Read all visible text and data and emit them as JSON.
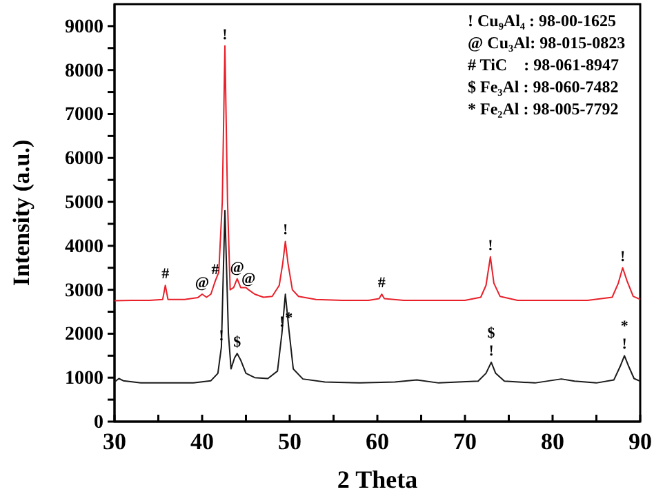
{
  "chart_data": {
    "type": "line",
    "xlabel": "2 Theta",
    "ylabel": "Intensity (a.u.)",
    "xlim": [
      30,
      90
    ],
    "ylim": [
      0,
      9500
    ],
    "xticks": [
      30,
      {
        "value": 35,
        "label": null
      },
      40,
      {
        "value": 45,
        "label": null
      },
      50,
      {
        "value": 55,
        "label": null
      },
      60,
      {
        "value": 65,
        "label": null
      },
      70,
      {
        "value": 75,
        "label": null
      },
      80,
      {
        "value": 85,
        "label": null
      },
      90
    ],
    "yticks": [
      0,
      {
        "value": 500,
        "label": null
      },
      1000,
      {
        "value": 1500,
        "label": null
      },
      2000,
      {
        "value": 2500,
        "label": null
      },
      3000,
      {
        "value": 3500,
        "label": null
      },
      4000,
      {
        "value": 4500,
        "label": null
      },
      5000,
      {
        "value": 5500,
        "label": null
      },
      6000,
      {
        "value": 6500,
        "label": null
      },
      7000,
      {
        "value": 7500,
        "label": null
      },
      8000,
      {
        "value": 8500,
        "label": null
      },
      9000
    ],
    "grid": false,
    "marker": "none",
    "line_style": "solid",
    "series": [
      {
        "color": "#e8202a",
        "x": [
          30,
          32,
          34,
          35.5,
          35.8,
          36.1,
          38,
          39.5,
          40,
          40.5,
          41,
          41.5,
          41.9,
          42.3,
          42.6,
          42.9,
          43.2,
          43.6,
          44,
          44.4,
          45,
          45.3,
          46,
          47,
          48,
          48.8,
          49.2,
          49.5,
          49.8,
          50.3,
          51,
          53,
          56,
          59,
          60.2,
          60.5,
          60.8,
          63,
          66,
          70,
          71.8,
          72.4,
          72.9,
          73.3,
          74,
          76,
          80,
          84,
          86.8,
          87.5,
          88,
          88.5,
          89.2,
          90
        ],
        "values": [
          2750,
          2760,
          2760,
          2780,
          3100,
          2780,
          2780,
          2820,
          2900,
          2830,
          2900,
          3200,
          3400,
          5000,
          8550,
          5000,
          3000,
          3050,
          3250,
          3050,
          3050,
          3000,
          2900,
          2830,
          2850,
          3100,
          3600,
          4100,
          3600,
          3000,
          2850,
          2780,
          2760,
          2760,
          2800,
          2900,
          2800,
          2760,
          2760,
          2760,
          2830,
          3100,
          3750,
          3150,
          2850,
          2760,
          2760,
          2760,
          2830,
          3150,
          3500,
          3200,
          2850,
          2780
        ]
      },
      {
        "color": "#1a1a1a",
        "x": [
          30,
          30.5,
          31,
          33,
          36,
          39,
          41,
          41.8,
          42.2,
          42.6,
          43,
          43.3,
          43.7,
          44,
          44.4,
          45,
          46,
          47.5,
          48.6,
          49.1,
          49.5,
          49.9,
          50.4,
          51.5,
          54,
          58,
          62,
          64.5,
          67,
          71.5,
          72.4,
          73,
          73.5,
          74.5,
          78,
          81,
          82.5,
          85,
          87,
          87.7,
          88.2,
          88.7,
          89.3,
          90
        ],
        "values": [
          900,
          980,
          930,
          880,
          880,
          880,
          930,
          1100,
          1700,
          4800,
          2000,
          1200,
          1450,
          1550,
          1400,
          1100,
          1000,
          980,
          1150,
          2000,
          2900,
          2100,
          1200,
          970,
          900,
          880,
          900,
          950,
          880,
          920,
          1100,
          1350,
          1100,
          920,
          880,
          970,
          920,
          880,
          950,
          1250,
          1500,
          1250,
          980,
          920
        ]
      }
    ],
    "annotations": [
      "! Cu₉Al₄ : 98-00-1625",
      "@ Cu₃Al: 98-015-0823",
      "# TiC    : 98-061-8947",
      "$ Fe₃Al : 98-060-7482",
      "* Fe₂Al : 98-005-7792",
      {
        "text": "#",
        "x": 35.8,
        "y": 3100
      },
      {
        "text": "@",
        "x": 40,
        "y": 2900
      },
      {
        "text": "#",
        "x": 41.5,
        "y": 3200
      },
      {
        "text": "!",
        "x": 42.6,
        "y": 8550
      },
      {
        "text": "@",
        "x": 44,
        "y": 3250
      },
      {
        "text": "@",
        "x": 45.3,
        "y": 3000
      },
      {
        "text": "!",
        "x": 49.5,
        "y": 4100
      },
      {
        "text": "#",
        "x": 60.5,
        "y": 2900
      },
      {
        "text": "!",
        "x": 72.9,
        "y": 3750
      },
      {
        "text": "!",
        "x": 88,
        "y": 3500
      },
      {
        "text": "!",
        "x": 42.2,
        "y": 1700
      },
      {
        "text": "$",
        "x": 44,
        "y": 1550
      },
      {
        "text": "!",
        "x": 49.1,
        "y": 2000
      },
      {
        "text": "*",
        "x": 49.9,
        "y": 2100
      },
      {
        "text": "!",
        "x": 73,
        "y": 1350
      },
      {
        "text": "$",
        "x": 73,
        "y": 1350
      },
      {
        "text": "!",
        "x": 88.2,
        "y": 1500
      },
      {
        "text": "*",
        "x": 88.2,
        "y": 1500
      }
    ]
  }
}
